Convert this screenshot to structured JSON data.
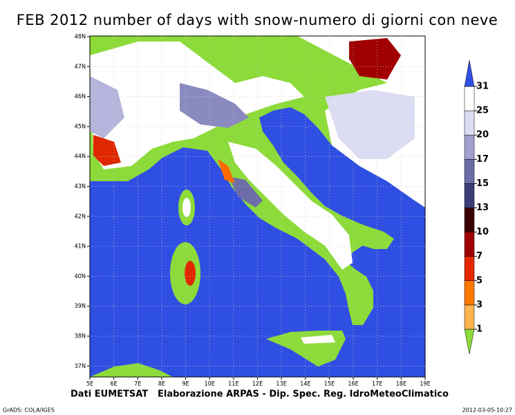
{
  "title": "FEB 2012 number of days with snow-numero di giorni con neve",
  "map": {
    "lon_labels": [
      "5E",
      "6E",
      "7E",
      "8E",
      "9E",
      "10E",
      "11E",
      "12E",
      "13E",
      "14E",
      "15E",
      "16E",
      "17E",
      "18E",
      "19E"
    ],
    "lat_labels": [
      "48N",
      "47N",
      "46N",
      "45N",
      "44N",
      "43N",
      "42N",
      "41N",
      "40N",
      "39N",
      "38N",
      "37N"
    ]
  },
  "colorbar": {
    "levels": [
      1,
      3,
      5,
      7,
      10,
      13,
      15,
      17,
      20,
      25,
      31
    ],
    "colors": [
      "#8ddb3a",
      "#ffb450",
      "#ff7800",
      "#e62800",
      "#a00000",
      "#3c0000",
      "#3c3c78",
      "#6c6ca8",
      "#a0a0d0",
      "#dcdcf2",
      "#ffffff",
      "#2f4fe3"
    ]
  },
  "credits": [
    "Dati EUMETSAT",
    "Elaborazione ARPAS - Dip. Spec. Reg. IdroMeteoClimatico"
  ],
  "footer_left": "GrADS: COLA/IGES",
  "footer_right": "2012-03-05-10:27"
}
